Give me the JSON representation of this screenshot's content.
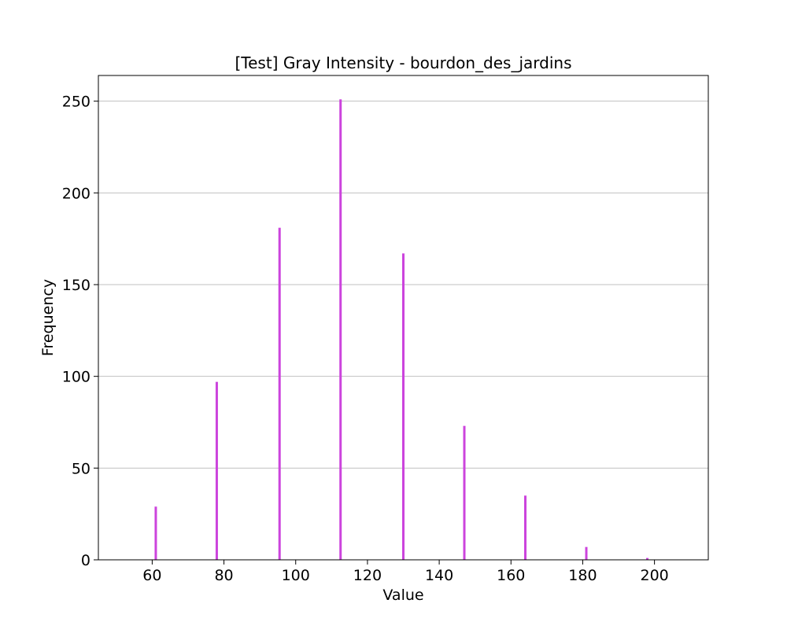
{
  "chart_data": {
    "type": "bar",
    "title": "[Test] Gray Intensity - bourdon_des_jardins",
    "xlabel": "Value",
    "ylabel": "Frequency",
    "xlim": [
      45,
      215
    ],
    "ylim": [
      0,
      264
    ],
    "xticks": [
      60,
      80,
      100,
      120,
      140,
      160,
      180,
      200
    ],
    "yticks": [
      0,
      50,
      100,
      150,
      200,
      250
    ],
    "grid": "y",
    "bar_color": "#cc44dd",
    "x": [
      61,
      78,
      95.5,
      112.5,
      130,
      147,
      164,
      181,
      198
    ],
    "values": [
      29,
      97,
      181,
      251,
      167,
      73,
      35,
      7,
      1
    ]
  }
}
